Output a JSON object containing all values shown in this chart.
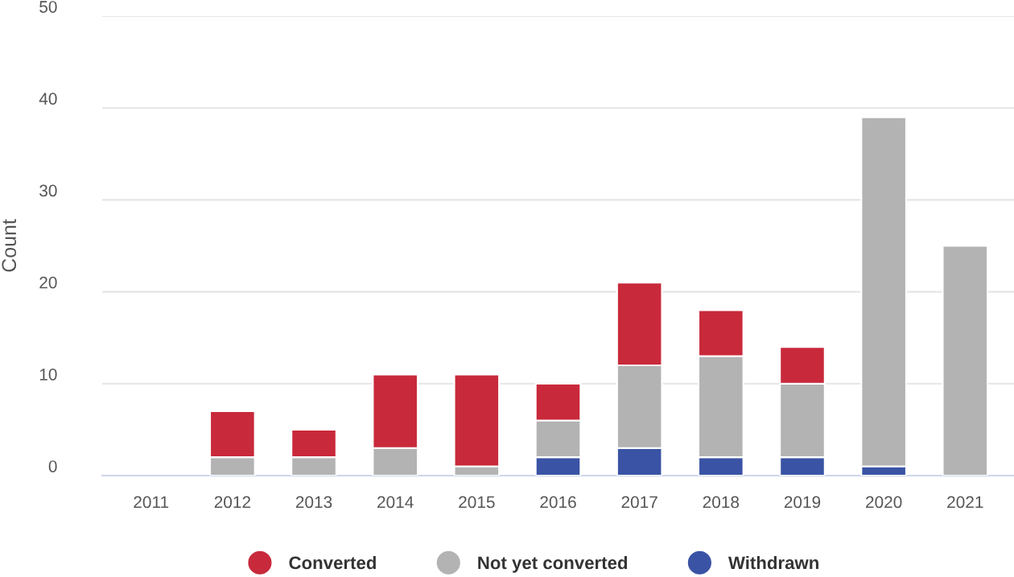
{
  "chart_data": {
    "type": "bar",
    "stacked": true,
    "ylabel": "Count",
    "categories": [
      "2011",
      "2012",
      "2013",
      "2014",
      "2015",
      "2016",
      "2017",
      "2018",
      "2019",
      "2020",
      "2021"
    ],
    "series": [
      {
        "name": "Withdrawn",
        "color": "#3a53a4",
        "values": [
          null,
          null,
          null,
          null,
          null,
          2,
          3,
          2,
          2,
          1,
          null
        ]
      },
      {
        "name": "Not yet converted",
        "color": "#b3b3b3",
        "values": [
          null,
          2,
          2,
          3,
          1,
          4,
          9,
          11,
          8,
          38,
          25
        ]
      },
      {
        "name": "Converted",
        "color": "#c8293b",
        "values": [
          null,
          5,
          3,
          8,
          10,
          4,
          9,
          5,
          4,
          null,
          null
        ]
      }
    ],
    "ylim": [
      0,
      50
    ],
    "yticks": [
      0,
      10,
      20,
      30,
      40,
      50
    ],
    "grid": "y",
    "legend": "bottom"
  }
}
